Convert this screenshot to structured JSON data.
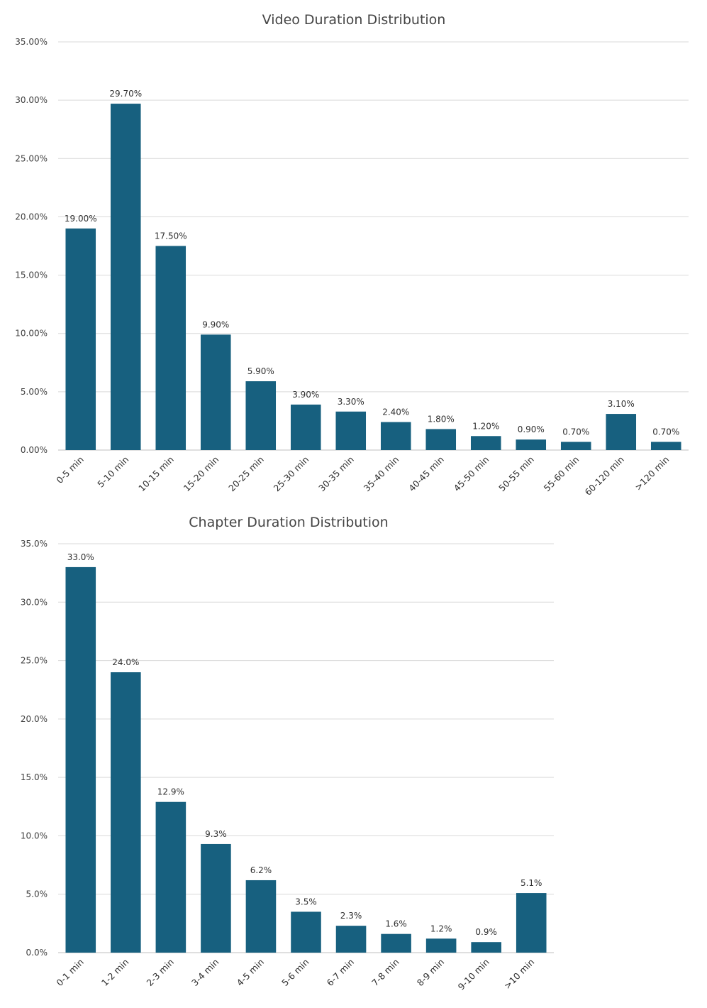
{
  "chart_data": [
    {
      "type": "bar",
      "title": "Video Duration Distribution",
      "categories": [
        "0-5 min",
        "5-10 min",
        "10-15 min",
        "15-20 min",
        "20-25 min",
        "25-30 min",
        "30-35 min",
        "35-40 min",
        "40-45 min",
        "45-50 min",
        "50-55 min",
        "55-60 min",
        "60-120 min",
        ">120 min"
      ],
      "values": [
        19.0,
        29.7,
        17.5,
        9.9,
        5.9,
        3.9,
        3.3,
        2.4,
        1.8,
        1.2,
        0.9,
        0.7,
        3.1,
        0.7
      ],
      "data_labels": [
        "19.00%",
        "29.70%",
        "17.50%",
        "9.90%",
        "5.90%",
        "3.90%",
        "3.30%",
        "2.40%",
        "1.80%",
        "1.20%",
        "0.90%",
        "0.70%",
        "3.10%",
        "0.70%"
      ],
      "yticks": [
        "0.00%",
        "5.00%",
        "10.00%",
        "15.00%",
        "20.00%",
        "25.00%",
        "30.00%",
        "35.00%"
      ],
      "ylim": [
        0,
        35
      ],
      "color": "#17607f",
      "grid": true,
      "xlabel": "",
      "ylabel": ""
    },
    {
      "type": "bar",
      "title": "Chapter Duration Distribution",
      "categories": [
        "0-1 min",
        "1-2 min",
        "2-3 min",
        "3-4 min",
        "4-5 min",
        "5-6 min",
        "6-7 min",
        "7-8 min",
        "8-9 min",
        "9-10 min",
        ">10 min"
      ],
      "values": [
        33.0,
        24.0,
        12.9,
        9.3,
        6.2,
        3.5,
        2.3,
        1.6,
        1.2,
        0.9,
        5.1
      ],
      "data_labels": [
        "33.0%",
        "24.0%",
        "12.9%",
        "9.3%",
        "6.2%",
        "3.5%",
        "2.3%",
        "1.6%",
        "1.2%",
        "0.9%",
        "5.1%"
      ],
      "yticks": [
        "0.0%",
        "5.0%",
        "10.0%",
        "15.0%",
        "20.0%",
        "25.0%",
        "30.0%",
        "35.0%"
      ],
      "ylim": [
        0,
        35
      ],
      "color": "#17607f",
      "grid": true,
      "xlabel": "",
      "ylabel": ""
    }
  ]
}
